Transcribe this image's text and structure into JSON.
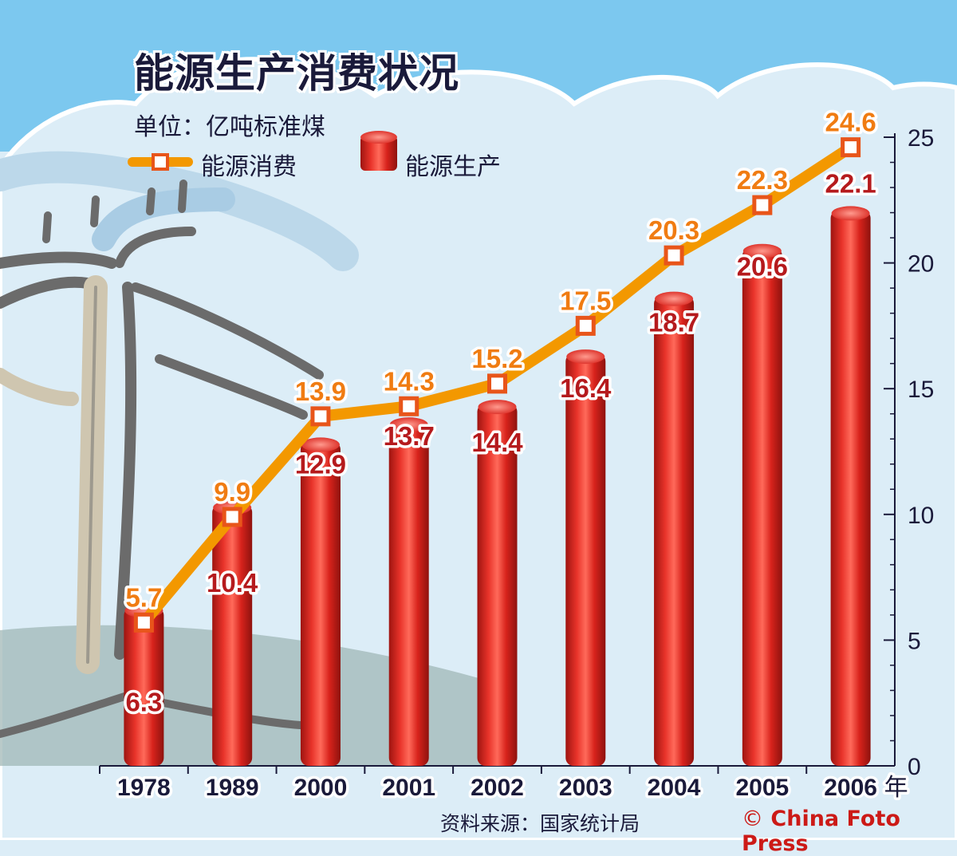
{
  "header": {
    "title": "能源生产消费状况",
    "unit": "单位：亿吨标准煤"
  },
  "legend": {
    "consumption": "能源消费",
    "production": "能源生产"
  },
  "footer": {
    "source": "资料来源：国家统计局",
    "credit_symbol": "©",
    "credit": "China Foto Press"
  },
  "colors": {
    "production_bar": "#d8231c",
    "consumption_line": "#f39800",
    "consumption_marker": "#e8551a",
    "production_label": "#b51a1d",
    "consumption_label": "#f07c12",
    "sky": "#7cc8ef",
    "axis": "#1a1a3a"
  },
  "icons": {
    "background": "power-line-pole-illustration",
    "legend_line": "line-with-square-marker-icon",
    "legend_bar": "red-cylinder-bar-icon"
  },
  "chart_data": {
    "type": "bar",
    "categories": [
      "1978",
      "1989",
      "2000",
      "2001",
      "2002",
      "2003",
      "2004",
      "2005",
      "2006"
    ],
    "x_unit": "年",
    "series": [
      {
        "name": "能源生产",
        "type": "bar",
        "values": [
          6.3,
          10.4,
          12.9,
          13.7,
          14.4,
          16.4,
          18.7,
          20.6,
          22.1
        ]
      },
      {
        "name": "能源消费",
        "type": "line",
        "values": [
          5.7,
          9.9,
          13.9,
          14.3,
          15.2,
          17.5,
          20.3,
          22.3,
          24.6
        ]
      }
    ],
    "data_labels": {
      "production": [
        "6.3",
        "10.4",
        "12.9",
        "13.7",
        "14.4",
        "16.4",
        "18.7",
        "20.6",
        "22.1"
      ],
      "consumption": [
        "5.7",
        "9.9",
        "13.9",
        "14.3",
        "15.2",
        "17.5",
        "20.3",
        "22.3",
        "24.6"
      ]
    },
    "title": "能源生产消费状况",
    "ylabel": "单位：亿吨标准煤",
    "ylim": [
      0,
      25
    ],
    "yticks": [
      0,
      5,
      10,
      15,
      20,
      25
    ],
    "ytick_labels": [
      "0",
      "5",
      "10",
      "15",
      "20",
      "25"
    ],
    "y_axis_side": "right",
    "grid": false,
    "legend_position": "top-left"
  }
}
